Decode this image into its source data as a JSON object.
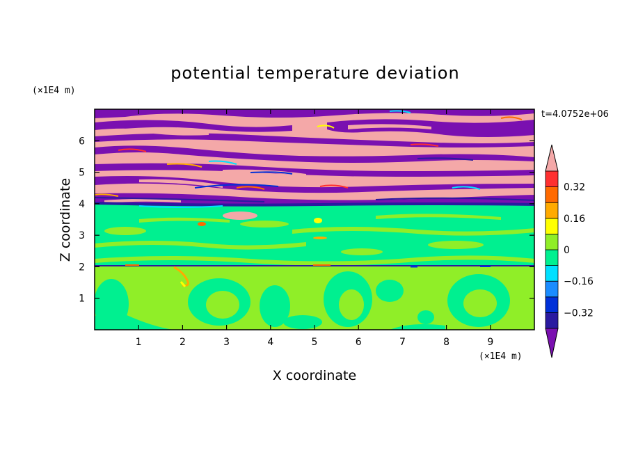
{
  "chart_data": {
    "type": "heatmap",
    "title": "potential temperature deviation",
    "xlabel": "X coordinate",
    "ylabel": "Z coordinate",
    "x_unit": "(×1E4 m)",
    "z_unit": "(×1E4 m)",
    "time_label": "t=4.0752e+06",
    "xlim": [
      0,
      10
    ],
    "ylim": [
      0,
      7
    ],
    "x_ticks": [
      1,
      2,
      3,
      4,
      5,
      6,
      7,
      8,
      9
    ],
    "y_ticks": [
      1,
      2,
      3,
      4,
      5,
      6
    ],
    "colorbar": {
      "labels": [
        {
          "value": 0.32,
          "text": "0.32"
        },
        {
          "value": 0.16,
          "text": "0.16"
        },
        {
          "value": 0,
          "text": "0"
        },
        {
          "value": -0.16,
          "text": "−0.16"
        },
        {
          "value": -0.32,
          "text": "−0.32"
        }
      ],
      "levels": [
        -0.4,
        -0.32,
        -0.24,
        -0.16,
        -0.08,
        0,
        0.08,
        0.16,
        0.24,
        0.32,
        0.4
      ],
      "colors": [
        "#7a10b0",
        "#2a1aa0",
        "#0030d8",
        "#1a8cff",
        "#00e0ff",
        "#00f090",
        "#90ee28",
        "#ffff00",
        "#ffaa00",
        "#ff6a00",
        "#ff3030",
        "#f4a8a8"
      ],
      "extends": "both"
    },
    "bands": [
      {
        "z_range": [
          0,
          2.0
        ],
        "dominant_value": 0.04,
        "secondary_value": -0.04,
        "description": "lower layer"
      },
      {
        "z_range": [
          2.0,
          4.0
        ],
        "dominant_value": -0.04,
        "secondary_value": 0.04
      },
      {
        "z_range": [
          4.0,
          7.0
        ],
        "dominant_values": [
          0.44,
          -0.44
        ],
        "pattern": "alternating layers"
      }
    ]
  }
}
